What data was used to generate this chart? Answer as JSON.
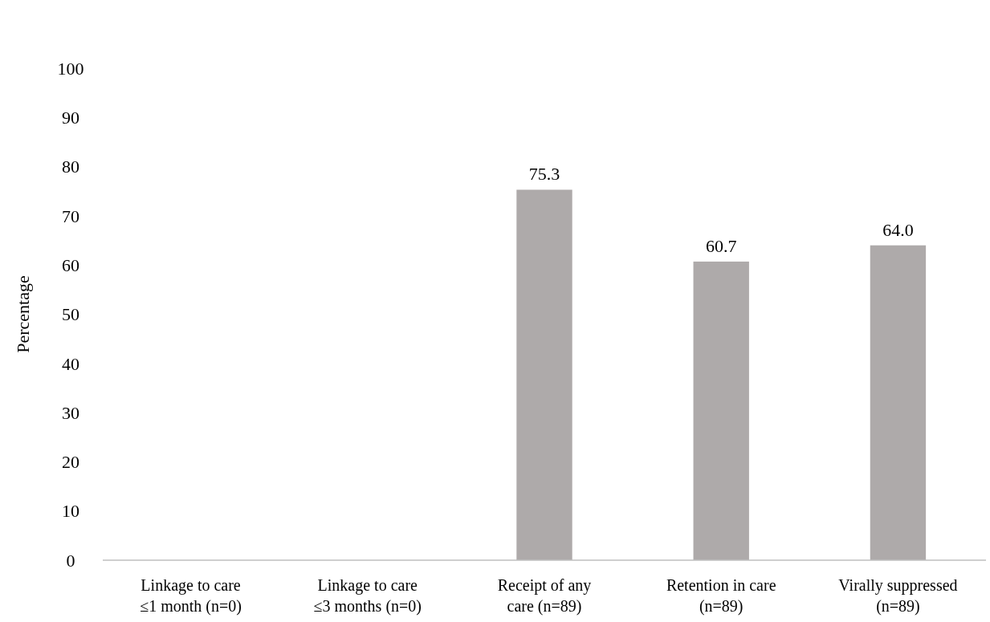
{
  "chart_data": {
    "type": "bar",
    "ylabel": "Percentage",
    "categories": [
      "Linkage to care\n≤1 month (n=0)",
      "Linkage to care\n≤3 months (n=0)",
      "Receipt of any\ncare (n=89)",
      "Retention in care\n(n=89)",
      "Virally suppressed\n(n=89)"
    ],
    "values": [
      null,
      null,
      75.3,
      60.7,
      64.0
    ],
    "value_labels": [
      null,
      null,
      "75.3",
      "60.7",
      "64.0"
    ],
    "color": "#aeaaaa",
    "ylim": [
      0,
      100
    ],
    "yticks": [
      0,
      10,
      20,
      30,
      40,
      50,
      60,
      70,
      80,
      90,
      100
    ],
    "grid": false
  }
}
